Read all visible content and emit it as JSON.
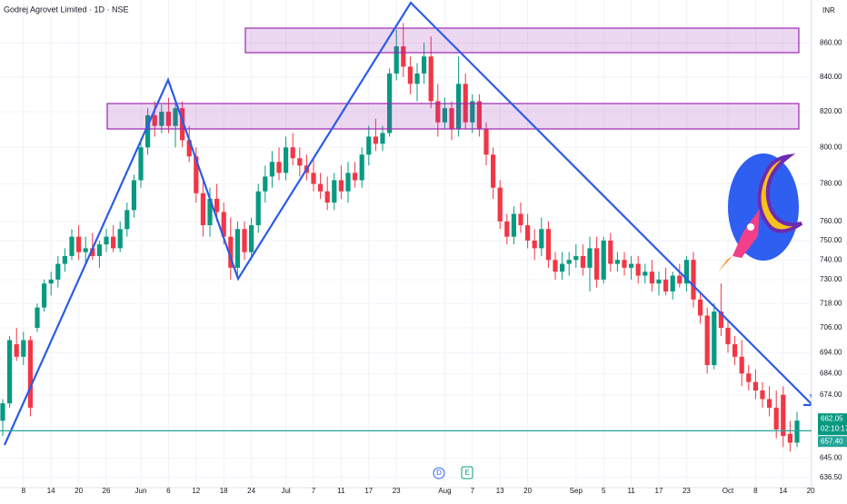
{
  "chart_data": {
    "type": "candlestick",
    "title": "Godrej Agrovet Limited · 1D · NSE",
    "currency": "INR",
    "log_scale": true,
    "grid": true,
    "up_color": "#089981",
    "down_color": "#f23645",
    "ylim": [
      632,
      886
    ],
    "yticks": [
      {
        "value": 860,
        "label": "860.00"
      },
      {
        "value": 840,
        "label": "840.00"
      },
      {
        "value": 820,
        "label": "820.00"
      },
      {
        "value": 800,
        "label": "800.00"
      },
      {
        "value": 780,
        "label": "780.00"
      },
      {
        "value": 760,
        "label": "760.00"
      },
      {
        "value": 750,
        "label": "750.00"
      },
      {
        "value": 740,
        "label": "740.00"
      },
      {
        "value": 730,
        "label": "730.00"
      },
      {
        "value": 718,
        "label": "718.00"
      },
      {
        "value": 706,
        "label": "706.00"
      },
      {
        "value": 694,
        "label": "694.00"
      },
      {
        "value": 684,
        "label": "684.00"
      },
      {
        "value": 674,
        "label": "674.00"
      },
      {
        "value": 645,
        "label": "645.00"
      },
      {
        "value": 636.5,
        "label": "636.50"
      }
    ],
    "categories": [
      null,
      null,
      null,
      "8",
      null,
      null,
      null,
      "14",
      null,
      null,
      null,
      "20",
      null,
      null,
      null,
      "26",
      null,
      null,
      null,
      null,
      "Jun",
      null,
      null,
      null,
      "6",
      null,
      null,
      null,
      "12",
      null,
      null,
      null,
      "18",
      null,
      null,
      null,
      "24",
      null,
      null,
      null,
      null,
      "Jul",
      null,
      null,
      null,
      "7",
      null,
      null,
      null,
      "11",
      null,
      null,
      null,
      "17",
      null,
      null,
      null,
      "23",
      null,
      null,
      null,
      null,
      null,
      null,
      "Aug",
      null,
      null,
      null,
      "7",
      null,
      null,
      null,
      "13",
      null,
      null,
      null,
      "20",
      null,
      null,
      null,
      null,
      null,
      null,
      "Sep",
      null,
      null,
      null,
      "5",
      null,
      null,
      null,
      "11",
      null,
      null,
      null,
      "17",
      null,
      null,
      null,
      "23",
      null,
      null,
      null,
      null,
      null,
      "Oct",
      null,
      null,
      null,
      "8",
      null,
      null,
      null,
      "14",
      null,
      null,
      null,
      "20"
    ],
    "open": [
      662,
      670,
      698,
      692,
      700,
      706,
      716,
      728,
      730,
      738,
      742,
      752,
      744,
      746,
      742,
      748,
      752,
      746,
      756,
      766,
      782,
      800,
      818,
      812,
      820,
      812,
      822,
      804,
      795,
      775,
      758,
      772,
      765,
      752,
      736,
      756,
      744,
      758,
      776,
      784,
      792,
      786,
      800,
      794,
      790,
      786,
      780,
      776,
      770,
      782,
      776,
      786,
      782,
      796,
      806,
      802,
      808,
      842,
      858,
      846,
      836,
      842,
      852,
      826,
      814,
      822,
      810,
      836,
      814,
      826,
      810,
      796,
      778,
      760,
      752,
      764,
      758,
      750,
      746,
      756,
      740,
      734,
      738,
      740,
      742,
      736,
      746,
      730,
      750,
      738,
      740,
      736,
      738,
      732,
      734,
      728,
      730,
      724,
      732,
      728,
      740,
      720,
      712,
      688,
      714,
      706,
      698,
      692,
      684,
      680,
      676,
      672,
      668,
      674,
      656,
      652,
      null,
      null
    ],
    "high": [
      672,
      702,
      706,
      704,
      702,
      718,
      730,
      734,
      742,
      746,
      756,
      758,
      752,
      754,
      750,
      756,
      758,
      760,
      770,
      785,
      805,
      822,
      826,
      824,
      828,
      826,
      826,
      812,
      800,
      782,
      778,
      780,
      770,
      762,
      760,
      760,
      762,
      780,
      790,
      798,
      800,
      806,
      808,
      800,
      796,
      794,
      786,
      784,
      786,
      790,
      792,
      792,
      800,
      812,
      816,
      812,
      845,
      868,
      872,
      852,
      848,
      860,
      864,
      836,
      828,
      826,
      852,
      842,
      830,
      830,
      814,
      800,
      782,
      764,
      768,
      770,
      764,
      756,
      762,
      760,
      744,
      744,
      744,
      748,
      748,
      752,
      752,
      752,
      754,
      744,
      744,
      742,
      742,
      738,
      740,
      734,
      736,
      734,
      738,
      742,
      744,
      724,
      716,
      718,
      728,
      710,
      702,
      700,
      688,
      686,
      680,
      678,
      676,
      678,
      662,
      666,
      null,
      null
    ],
    "low": [
      655,
      668,
      690,
      688,
      664,
      704,
      714,
      722,
      726,
      734,
      740,
      740,
      738,
      740,
      736,
      744,
      744,
      744,
      752,
      762,
      778,
      796,
      806,
      808,
      808,
      800,
      800,
      792,
      770,
      752,
      752,
      760,
      748,
      730,
      732,
      740,
      740,
      754,
      770,
      778,
      782,
      782,
      790,
      784,
      782,
      776,
      772,
      766,
      766,
      772,
      770,
      778,
      778,
      790,
      798,
      798,
      806,
      838,
      840,
      830,
      826,
      836,
      822,
      806,
      810,
      804,
      806,
      810,
      808,
      806,
      790,
      772,
      756,
      748,
      748,
      754,
      746,
      740,
      742,
      736,
      730,
      730,
      732,
      736,
      732,
      724,
      726,
      728,
      734,
      734,
      732,
      730,
      728,
      728,
      724,
      722,
      722,
      720,
      726,
      724,
      716,
      708,
      684,
      686,
      702,
      694,
      688,
      678,
      676,
      672,
      668,
      664,
      654,
      650,
      648,
      650,
      null,
      null
    ],
    "close": [
      670,
      700,
      692,
      700,
      668,
      716,
      728,
      730,
      738,
      742,
      752,
      744,
      746,
      742,
      748,
      752,
      746,
      756,
      766,
      782,
      800,
      818,
      812,
      820,
      812,
      822,
      804,
      795,
      775,
      758,
      772,
      765,
      752,
      736,
      756,
      744,
      758,
      776,
      784,
      792,
      786,
      800,
      794,
      790,
      786,
      780,
      776,
      770,
      782,
      776,
      786,
      782,
      796,
      806,
      802,
      808,
      842,
      858,
      846,
      836,
      842,
      852,
      826,
      814,
      822,
      810,
      836,
      814,
      826,
      810,
      796,
      778,
      760,
      752,
      764,
      758,
      750,
      746,
      756,
      740,
      734,
      738,
      740,
      742,
      736,
      746,
      730,
      750,
      738,
      740,
      736,
      738,
      732,
      734,
      728,
      730,
      724,
      732,
      728,
      740,
      720,
      712,
      688,
      714,
      706,
      698,
      692,
      684,
      680,
      676,
      672,
      668,
      658,
      655,
      652,
      662.05,
      null,
      null
    ],
    "last_price": {
      "value": 662.05,
      "label": "662.05"
    },
    "countdown": "02:10:17",
    "price_line": {
      "value": 657.4,
      "label": "657.40"
    },
    "event_markers": [
      "D",
      "E"
    ]
  }
}
